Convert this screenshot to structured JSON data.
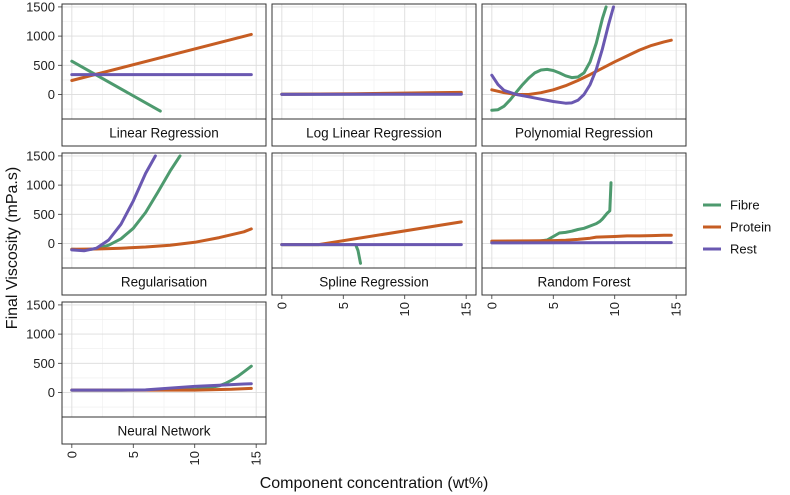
{
  "chart_data": {
    "type": "line",
    "layout": "facet-grid",
    "ylabel": "Final Viscosity (mPa.s)",
    "xlabel": "Component concentration (wt%)",
    "ylim": [
      -420,
      1550
    ],
    "xlim": [
      -0.8,
      15.8
    ],
    "yticks": [
      0,
      500,
      1000,
      1500
    ],
    "xticks": [
      0,
      5,
      10,
      15
    ],
    "legend_position": "right",
    "series_colors": {
      "Fibre": "#4d9a6e",
      "Protein": "#c65d23",
      "Rest": "#6a58b1"
    },
    "legend": [
      "Fibre",
      "Protein",
      "Rest"
    ],
    "panels": [
      {
        "title": "Linear Regression",
        "series": [
          {
            "name": "Fibre",
            "x": [
              0,
              7.2
            ],
            "y": [
              570,
              -285
            ]
          },
          {
            "name": "Protein",
            "x": [
              0,
              14.6
            ],
            "y": [
              240,
              1030
            ]
          },
          {
            "name": "Rest",
            "x": [
              0,
              14.6
            ],
            "y": [
              340,
              340
            ]
          }
        ]
      },
      {
        "title": "Log Linear Regression",
        "series": [
          {
            "name": "Fibre",
            "x": [
              0,
              14.6
            ],
            "y": [
              5,
              10
            ]
          },
          {
            "name": "Protein",
            "x": [
              0,
              3,
              6,
              9,
              12,
              14.6
            ],
            "y": [
              3,
              8,
              14,
              20,
              28,
              35
            ]
          },
          {
            "name": "Rest",
            "x": [
              0,
              14.6
            ],
            "y": [
              2,
              4
            ]
          }
        ]
      },
      {
        "title": "Polynomial Regression",
        "series": [
          {
            "name": "Fibre",
            "x": [
              0,
              0.5,
              1,
              1.5,
              2,
              2.5,
              3,
              3.5,
              4,
              4.5,
              5,
              5.5,
              6,
              6.5,
              7,
              7.5,
              8,
              8.5,
              9,
              9.3
            ],
            "y": [
              -270,
              -260,
              -200,
              -90,
              40,
              170,
              280,
              370,
              420,
              430,
              410,
              370,
              320,
              290,
              300,
              370,
              560,
              880,
              1300,
              1500
            ]
          },
          {
            "name": "Protein",
            "x": [
              0,
              1,
              2,
              3,
              4,
              5,
              6,
              7,
              8,
              9,
              10,
              11,
              12,
              13,
              14,
              14.6
            ],
            "y": [
              80,
              30,
              0,
              0,
              30,
              80,
              150,
              240,
              340,
              450,
              560,
              660,
              760,
              840,
              900,
              930
            ]
          },
          {
            "name": "Rest",
            "x": [
              0,
              0.5,
              1,
              2,
              3,
              4,
              5,
              6,
              6.5,
              7,
              7.5,
              8,
              8.5,
              9,
              9.5,
              9.9
            ],
            "y": [
              330,
              170,
              70,
              0,
              -40,
              -80,
              -120,
              -150,
              -145,
              -100,
              0,
              170,
              430,
              780,
              1200,
              1500
            ]
          }
        ]
      },
      {
        "title": "Regularisation",
        "series": [
          {
            "name": "Fibre",
            "x": [
              0,
              1,
              2,
              3,
              4,
              5,
              6,
              7,
              8,
              8.8
            ],
            "y": [
              -100,
              -110,
              -90,
              -30,
              80,
              260,
              530,
              880,
              1240,
              1500
            ]
          },
          {
            "name": "Protein",
            "x": [
              0,
              2,
              4,
              6,
              8,
              10,
              12,
              14,
              14.6
            ],
            "y": [
              -100,
              -95,
              -80,
              -60,
              -30,
              20,
              100,
              200,
              250
            ]
          },
          {
            "name": "Rest",
            "x": [
              0,
              1,
              2,
              3,
              4,
              5,
              6,
              6.8
            ],
            "y": [
              -110,
              -125,
              -80,
              60,
              330,
              730,
              1200,
              1500
            ]
          }
        ]
      },
      {
        "title": "Spline Regression",
        "series": [
          {
            "name": "Fibre",
            "x": [
              0,
              6,
              6.2,
              6.4
            ],
            "y": [
              -20,
              -20,
              -120,
              -340
            ]
          },
          {
            "name": "Protein",
            "x": [
              0,
              3,
              14.6
            ],
            "y": [
              -20,
              -20,
              370
            ]
          },
          {
            "name": "Rest",
            "x": [
              0,
              14.6
            ],
            "y": [
              -20,
              -20
            ]
          }
        ]
      },
      {
        "title": "Random Forest",
        "series": [
          {
            "name": "Fibre",
            "x": [
              0,
              2,
              3.5,
              4.5,
              5,
              5.5,
              6,
              6.5,
              7,
              7.5,
              8,
              8.5,
              8.8,
              9,
              9.2,
              9.4,
              9.6,
              9.7
            ],
            "y": [
              20,
              20,
              30,
              60,
              120,
              180,
              190,
              210,
              240,
              260,
              300,
              340,
              380,
              420,
              470,
              520,
              560,
              1040
            ]
          },
          {
            "name": "Protein",
            "x": [
              0,
              3,
              5,
              6,
              7,
              8,
              8.5,
              10,
              11,
              12,
              13,
              14,
              14.6
            ],
            "y": [
              40,
              45,
              50,
              55,
              70,
              90,
              110,
              120,
              130,
              130,
              135,
              140,
              140
            ]
          },
          {
            "name": "Rest",
            "x": [
              0,
              14.6
            ],
            "y": [
              10,
              15
            ]
          }
        ]
      },
      {
        "title": "Neural Network",
        "series": [
          {
            "name": "Fibre",
            "x": [
              0,
              4,
              8,
              10,
              11,
              12,
              12.5,
              13,
              13.5,
              14,
              14.6
            ],
            "y": [
              40,
              40,
              45,
              55,
              75,
              115,
              155,
              210,
              275,
              355,
              450
            ]
          },
          {
            "name": "Protein",
            "x": [
              0,
              5,
              10,
              13,
              14.6
            ],
            "y": [
              40,
              40,
              40,
              55,
              70
            ]
          },
          {
            "name": "Rest",
            "x": [
              0,
              4,
              6,
              8,
              10,
              12,
              14,
              14.6
            ],
            "y": [
              40,
              40,
              45,
              75,
              105,
              125,
              145,
              150
            ]
          }
        ]
      }
    ]
  }
}
